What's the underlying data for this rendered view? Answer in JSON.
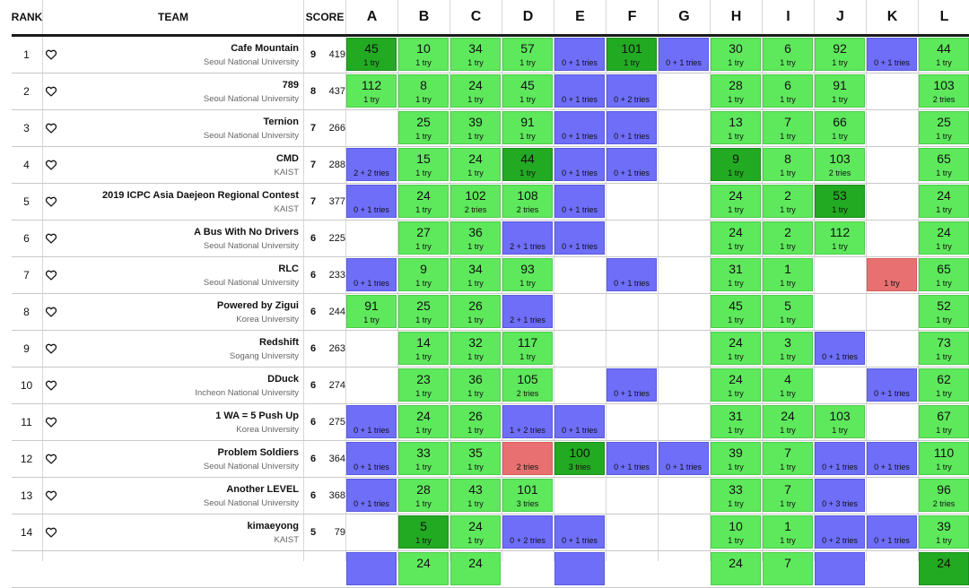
{
  "header": {
    "rank": "RANK",
    "team": "TEAM",
    "score": "SCORE"
  },
  "problems": [
    "A",
    "B",
    "C",
    "D",
    "E",
    "F",
    "G",
    "H",
    "I",
    "J",
    "K",
    "L"
  ],
  "colors": {
    "solved": "#5ee85c",
    "first_to_solve": "#22aa22",
    "pending": "#6e6ef8",
    "failed": "#e87070"
  },
  "rows": [
    {
      "rank": "1",
      "team": "Cafe Mountain",
      "univ": "Seoul National University",
      "solved": "9",
      "penalty": "419",
      "cells": [
        [
          "first",
          "45",
          "1 try"
        ],
        [
          "solved",
          "10",
          "1 try"
        ],
        [
          "solved",
          "34",
          "1 try"
        ],
        [
          "solved",
          "57",
          "1 try"
        ],
        [
          "pending",
          "",
          "0 + 1 tries"
        ],
        [
          "first",
          "101",
          "1 try"
        ],
        [
          "pending",
          "",
          "0 + 1 tries"
        ],
        [
          "solved",
          "30",
          "1 try"
        ],
        [
          "solved",
          "6",
          "1 try"
        ],
        [
          "solved",
          "92",
          "1 try"
        ],
        [
          "pending",
          "",
          "0 + 1 tries"
        ],
        [
          "solved",
          "44",
          "1 try"
        ]
      ]
    },
    {
      "rank": "2",
      "team": "789",
      "univ": "Seoul National University",
      "solved": "8",
      "penalty": "437",
      "cells": [
        [
          "solved",
          "112",
          "1 try"
        ],
        [
          "solved",
          "8",
          "1 try"
        ],
        [
          "solved",
          "24",
          "1 try"
        ],
        [
          "solved",
          "45",
          "1 try"
        ],
        [
          "pending",
          "",
          "0 + 1 tries"
        ],
        [
          "pending",
          "",
          "0 + 2 tries"
        ],
        null,
        [
          "solved",
          "28",
          "1 try"
        ],
        [
          "solved",
          "6",
          "1 try"
        ],
        [
          "solved",
          "91",
          "1 try"
        ],
        null,
        [
          "solved",
          "103",
          "2 tries"
        ]
      ]
    },
    {
      "rank": "3",
      "team": "Ternion",
      "univ": "Seoul National University",
      "solved": "7",
      "penalty": "266",
      "cells": [
        null,
        [
          "solved",
          "25",
          "1 try"
        ],
        [
          "solved",
          "39",
          "1 try"
        ],
        [
          "solved",
          "91",
          "1 try"
        ],
        [
          "pending",
          "",
          "0 + 1 tries"
        ],
        [
          "pending",
          "",
          "0 + 1 tries"
        ],
        null,
        [
          "solved",
          "13",
          "1 try"
        ],
        [
          "solved",
          "7",
          "1 try"
        ],
        [
          "solved",
          "66",
          "1 try"
        ],
        null,
        [
          "solved",
          "25",
          "1 try"
        ]
      ]
    },
    {
      "rank": "4",
      "team": "CMD",
      "univ": "KAIST",
      "solved": "7",
      "penalty": "288",
      "cells": [
        [
          "pending",
          "",
          "2 + 2 tries"
        ],
        [
          "solved",
          "15",
          "1 try"
        ],
        [
          "solved",
          "24",
          "1 try"
        ],
        [
          "first",
          "44",
          "1 try"
        ],
        [
          "pending",
          "",
          "0 + 1 tries"
        ],
        [
          "pending",
          "",
          "0 + 1 tries"
        ],
        null,
        [
          "first",
          "9",
          "1 try"
        ],
        [
          "solved",
          "8",
          "1 try"
        ],
        [
          "solved",
          "103",
          "2 tries"
        ],
        null,
        [
          "solved",
          "65",
          "1 try"
        ]
      ]
    },
    {
      "rank": "5",
      "team": "2019 ICPC Asia Daejeon Regional Contest",
      "univ": "KAIST",
      "solved": "7",
      "penalty": "377",
      "cells": [
        [
          "pending",
          "",
          "0 + 1 tries"
        ],
        [
          "solved",
          "24",
          "1 try"
        ],
        [
          "solved",
          "102",
          "2 tries"
        ],
        [
          "solved",
          "108",
          "2 tries"
        ],
        [
          "pending",
          "",
          "0 + 1 tries"
        ],
        null,
        null,
        [
          "solved",
          "24",
          "1 try"
        ],
        [
          "solved",
          "2",
          "1 try"
        ],
        [
          "first",
          "53",
          "1 try"
        ],
        null,
        [
          "solved",
          "24",
          "1 try"
        ]
      ]
    },
    {
      "rank": "6",
      "team": "A Bus With No Drivers",
      "univ": "Seoul National University",
      "solved": "6",
      "penalty": "225",
      "cells": [
        null,
        [
          "solved",
          "27",
          "1 try"
        ],
        [
          "solved",
          "36",
          "1 try"
        ],
        [
          "pending",
          "",
          "2 + 1 tries"
        ],
        [
          "pending",
          "",
          "0 + 1 tries"
        ],
        null,
        null,
        [
          "solved",
          "24",
          "1 try"
        ],
        [
          "solved",
          "2",
          "1 try"
        ],
        [
          "solved",
          "112",
          "1 try"
        ],
        null,
        [
          "solved",
          "24",
          "1 try"
        ]
      ]
    },
    {
      "rank": "7",
      "team": "RLC",
      "univ": "Seoul National University",
      "solved": "6",
      "penalty": "233",
      "cells": [
        [
          "pending",
          "",
          "0 + 1 tries"
        ],
        [
          "solved",
          "9",
          "1 try"
        ],
        [
          "solved",
          "34",
          "1 try"
        ],
        [
          "solved",
          "93",
          "1 try"
        ],
        null,
        [
          "pending",
          "",
          "0 + 1 tries"
        ],
        null,
        [
          "solved",
          "31",
          "1 try"
        ],
        [
          "solved",
          "1",
          "1 try"
        ],
        null,
        [
          "failed",
          "",
          "1 try"
        ],
        [
          "solved",
          "65",
          "1 try"
        ]
      ]
    },
    {
      "rank": "8",
      "team": "Powered by Zigui",
      "univ": "Korea University",
      "solved": "6",
      "penalty": "244",
      "cells": [
        [
          "solved",
          "91",
          "1 try"
        ],
        [
          "solved",
          "25",
          "1 try"
        ],
        [
          "solved",
          "26",
          "1 try"
        ],
        [
          "pending",
          "",
          "2 + 1 tries"
        ],
        null,
        null,
        null,
        [
          "solved",
          "45",
          "1 try"
        ],
        [
          "solved",
          "5",
          "1 try"
        ],
        null,
        null,
        [
          "solved",
          "52",
          "1 try"
        ]
      ]
    },
    {
      "rank": "9",
      "team": "Redshift",
      "univ": "Sogang University",
      "solved": "6",
      "penalty": "263",
      "cells": [
        null,
        [
          "solved",
          "14",
          "1 try"
        ],
        [
          "solved",
          "32",
          "1 try"
        ],
        [
          "solved",
          "117",
          "1 try"
        ],
        null,
        null,
        null,
        [
          "solved",
          "24",
          "1 try"
        ],
        [
          "solved",
          "3",
          "1 try"
        ],
        [
          "pending",
          "",
          "0 + 1 tries"
        ],
        null,
        [
          "solved",
          "73",
          "1 try"
        ]
      ]
    },
    {
      "rank": "10",
      "team": "DDuck",
      "univ": "Incheon National University",
      "solved": "6",
      "penalty": "274",
      "cells": [
        null,
        [
          "solved",
          "23",
          "1 try"
        ],
        [
          "solved",
          "36",
          "1 try"
        ],
        [
          "solved",
          "105",
          "2 tries"
        ],
        null,
        [
          "pending",
          "",
          "0 + 1 tries"
        ],
        null,
        [
          "solved",
          "24",
          "1 try"
        ],
        [
          "solved",
          "4",
          "1 try"
        ],
        null,
        [
          "pending",
          "",
          "0 + 1 tries"
        ],
        [
          "solved",
          "62",
          "1 try"
        ]
      ]
    },
    {
      "rank": "11",
      "team": "1 WA = 5 Push Up",
      "univ": "Korea University",
      "solved": "6",
      "penalty": "275",
      "cells": [
        [
          "pending",
          "",
          "0 + 1 tries"
        ],
        [
          "solved",
          "24",
          "1 try"
        ],
        [
          "solved",
          "26",
          "1 try"
        ],
        [
          "pending",
          "",
          "1 + 2 tries"
        ],
        [
          "pending",
          "",
          "0 + 1 tries"
        ],
        null,
        null,
        [
          "solved",
          "31",
          "1 try"
        ],
        [
          "solved",
          "24",
          "1 try"
        ],
        [
          "solved",
          "103",
          "1 try"
        ],
        null,
        [
          "solved",
          "67",
          "1 try"
        ]
      ]
    },
    {
      "rank": "12",
      "team": "Problem Soldiers",
      "univ": "Seoul National University",
      "solved": "6",
      "penalty": "364",
      "cells": [
        [
          "pending",
          "",
          "0 + 1 tries"
        ],
        [
          "solved",
          "33",
          "1 try"
        ],
        [
          "solved",
          "35",
          "1 try"
        ],
        [
          "failed",
          "",
          "2 tries"
        ],
        [
          "first",
          "100",
          "3 tries"
        ],
        [
          "pending",
          "",
          "0 + 1 tries"
        ],
        [
          "pending",
          "",
          "0 + 1 tries"
        ],
        [
          "solved",
          "39",
          "1 try"
        ],
        [
          "solved",
          "7",
          "1 try"
        ],
        [
          "pending",
          "",
          "0 + 1 tries"
        ],
        [
          "pending",
          "",
          "0 + 1 tries"
        ],
        [
          "solved",
          "110",
          "1 try"
        ]
      ]
    },
    {
      "rank": "13",
      "team": "Another LEVEL",
      "univ": "Seoul National University",
      "solved": "6",
      "penalty": "368",
      "cells": [
        [
          "pending",
          "",
          "0 + 1 tries"
        ],
        [
          "solved",
          "28",
          "1 try"
        ],
        [
          "solved",
          "43",
          "1 try"
        ],
        [
          "solved",
          "101",
          "3 tries"
        ],
        null,
        null,
        null,
        [
          "solved",
          "33",
          "1 try"
        ],
        [
          "solved",
          "7",
          "1 try"
        ],
        [
          "pending",
          "",
          "0 + 3 tries"
        ],
        null,
        [
          "solved",
          "96",
          "2 tries"
        ]
      ]
    },
    {
      "rank": "14",
      "team": "kimaeyong",
      "univ": "KAIST",
      "solved": "5",
      "penalty": "79",
      "cells": [
        null,
        [
          "first",
          "5",
          "1 try"
        ],
        [
          "solved",
          "24",
          "1 try"
        ],
        [
          "pending",
          "",
          "0 + 2 tries"
        ],
        [
          "pending",
          "",
          "0 + 1 tries"
        ],
        null,
        null,
        [
          "solved",
          "10",
          "1 try"
        ],
        [
          "solved",
          "1",
          "1 try"
        ],
        [
          "pending",
          "",
          "0 + 2 tries"
        ],
        [
          "pending",
          "",
          "0 + 1 tries"
        ],
        [
          "solved",
          "39",
          "1 try"
        ]
      ]
    },
    {
      "rank": "",
      "team": "",
      "univ": "",
      "solved": "",
      "penalty": "",
      "cells": [
        [
          "pending",
          "",
          ""
        ],
        [
          "solved",
          "24",
          ""
        ],
        [
          "solved",
          "24",
          ""
        ],
        null,
        [
          "pending",
          "",
          ""
        ],
        null,
        null,
        [
          "solved",
          "24",
          ""
        ],
        [
          "solved",
          "7",
          ""
        ],
        [
          "pending",
          "",
          ""
        ],
        null,
        [
          "first",
          "24",
          ""
        ]
      ]
    }
  ]
}
